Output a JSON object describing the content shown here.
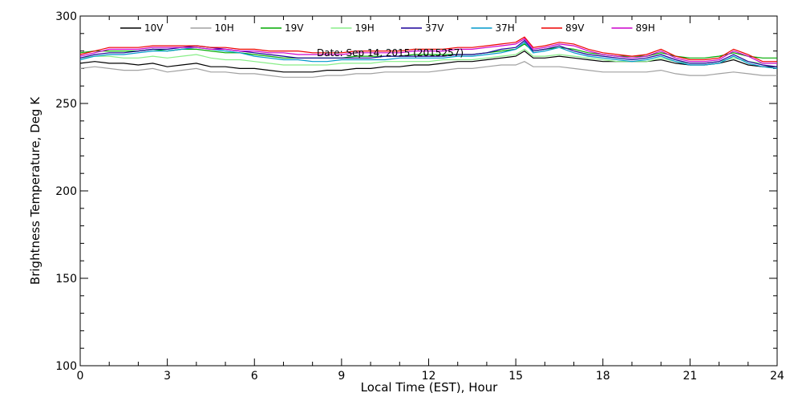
{
  "chart_data": {
    "type": "line",
    "xlabel": "Local Time (EST), Hour",
    "ylabel": "Brightness Temperature, Deg K",
    "annotation": "Date: Sep 14, 2015 (2015257)",
    "xlim": [
      0,
      24
    ],
    "ylim": [
      100,
      300
    ],
    "xticks": [
      "0",
      "3",
      "6",
      "9",
      "12",
      "15",
      "18",
      "21",
      "24"
    ],
    "yticks": [
      "100",
      "150",
      "200",
      "250",
      "300"
    ],
    "grid": false,
    "legend_position": "top",
    "x": [
      0,
      0.5,
      1,
      1.5,
      2,
      2.5,
      3,
      3.5,
      4,
      4.5,
      5,
      5.5,
      6,
      6.5,
      7,
      7.5,
      8,
      8.5,
      9,
      9.5,
      10,
      10.5,
      11,
      11.5,
      12,
      12.5,
      13,
      13.5,
      14,
      14.5,
      15,
      15.3,
      15.6,
      16,
      16.5,
      17,
      17.5,
      18,
      18.5,
      19,
      19.5,
      20,
      20.5,
      21,
      21.5,
      22,
      22.5,
      23,
      23.5,
      24
    ],
    "series": [
      {
        "name": "10V",
        "color": "#000000",
        "values": [
          273,
          274,
          273,
          273,
          272,
          273,
          271,
          272,
          273,
          271,
          271,
          270,
          270,
          269,
          268,
          268,
          268,
          269,
          269,
          270,
          270,
          271,
          271,
          272,
          272,
          273,
          274,
          274,
          275,
          276,
          277,
          280,
          276,
          276,
          277,
          276,
          275,
          274,
          274,
          274,
          274,
          275,
          273,
          272,
          272,
          273,
          275,
          272,
          271,
          271
        ]
      },
      {
        "name": "10H",
        "color": "#a0a0a0",
        "values": [
          270,
          271,
          270,
          269,
          269,
          270,
          268,
          269,
          270,
          268,
          268,
          267,
          267,
          266,
          265,
          265,
          265,
          266,
          266,
          267,
          267,
          268,
          268,
          268,
          268,
          269,
          270,
          270,
          271,
          272,
          272,
          274,
          271,
          271,
          271,
          270,
          269,
          268,
          268,
          268,
          268,
          269,
          267,
          266,
          266,
          267,
          268,
          267,
          266,
          266
        ]
      },
      {
        "name": "19V",
        "color": "#00aa00",
        "values": [
          279,
          280,
          280,
          280,
          280,
          281,
          280,
          281,
          281,
          280,
          279,
          279,
          278,
          277,
          276,
          276,
          276,
          276,
          276,
          277,
          277,
          277,
          277,
          278,
          278,
          278,
          278,
          278,
          279,
          280,
          281,
          284,
          280,
          281,
          282,
          281,
          279,
          278,
          277,
          277,
          277,
          279,
          277,
          276,
          276,
          277,
          279,
          277,
          276,
          276
        ]
      },
      {
        "name": "19H",
        "color": "#88ee88",
        "values": [
          276,
          277,
          277,
          276,
          276,
          277,
          276,
          277,
          278,
          276,
          275,
          275,
          274,
          273,
          272,
          272,
          272,
          272,
          273,
          273,
          273,
          274,
          274,
          274,
          274,
          275,
          275,
          275,
          276,
          277,
          278,
          281,
          277,
          277,
          278,
          277,
          276,
          275,
          274,
          274,
          274,
          276,
          274,
          273,
          273,
          274,
          276,
          274,
          273,
          273
        ]
      },
      {
        "name": "37V",
        "color": "#1a0099",
        "values": [
          276,
          278,
          279,
          279,
          280,
          281,
          281,
          282,
          283,
          282,
          281,
          280,
          279,
          278,
          277,
          276,
          276,
          276,
          276,
          276,
          276,
          277,
          277,
          277,
          277,
          277,
          278,
          278,
          279,
          281,
          282,
          286,
          280,
          281,
          283,
          280,
          278,
          277,
          276,
          275,
          276,
          278,
          275,
          273,
          273,
          274,
          278,
          274,
          272,
          271
        ]
      },
      {
        "name": "37H",
        "color": "#0099cc",
        "values": [
          275,
          277,
          278,
          278,
          279,
          280,
          280,
          281,
          282,
          281,
          280,
          279,
          277,
          276,
          275,
          275,
          274,
          274,
          275,
          275,
          275,
          275,
          276,
          276,
          276,
          276,
          277,
          277,
          278,
          279,
          281,
          285,
          279,
          280,
          282,
          279,
          277,
          276,
          275,
          274,
          275,
          277,
          274,
          272,
          272,
          273,
          277,
          273,
          271,
          270
        ]
      },
      {
        "name": "89V",
        "color": "#ee0000",
        "values": [
          278,
          280,
          282,
          282,
          282,
          283,
          283,
          283,
          283,
          282,
          282,
          281,
          281,
          280,
          280,
          280,
          279,
          279,
          279,
          280,
          280,
          280,
          280,
          281,
          281,
          281,
          282,
          282,
          283,
          284,
          285,
          288,
          282,
          283,
          285,
          284,
          281,
          279,
          278,
          277,
          278,
          281,
          277,
          275,
          275,
          276,
          281,
          278,
          274,
          274
        ]
      },
      {
        "name": "89H",
        "color": "#cc00cc",
        "values": [
          277,
          279,
          281,
          281,
          281,
          282,
          282,
          282,
          282,
          281,
          281,
          280,
          280,
          279,
          279,
          278,
          278,
          278,
          278,
          279,
          279,
          279,
          279,
          280,
          280,
          280,
          281,
          281,
          282,
          283,
          284,
          287,
          281,
          282,
          284,
          283,
          280,
          278,
          277,
          276,
          277,
          280,
          276,
          274,
          274,
          275,
          280,
          277,
          273,
          273
        ]
      }
    ]
  }
}
